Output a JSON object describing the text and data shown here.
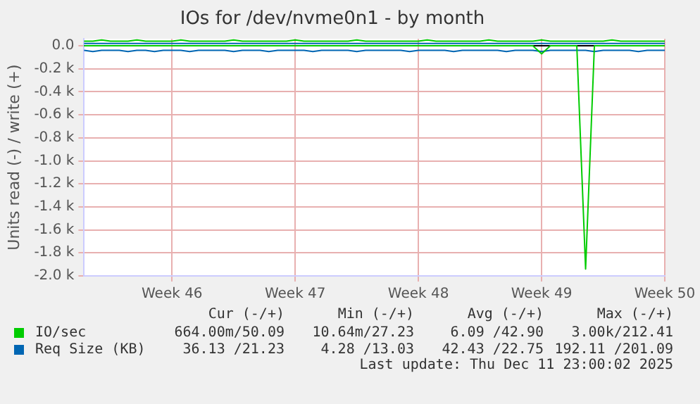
{
  "chart_data": {
    "type": "line",
    "title": "IOs for /dev/nvme0n1 - by month",
    "ylabel": "Units read (-) / write (+)",
    "categories": [
      null,
      null,
      null,
      null,
      null,
      null,
      null,
      null,
      null,
      null,
      "Week 46",
      null,
      null,
      null,
      null,
      null,
      null,
      null,
      null,
      null,
      null,
      null,
      null,
      null,
      "Week 47",
      null,
      null,
      null,
      null,
      null,
      null,
      null,
      null,
      null,
      null,
      null,
      null,
      null,
      "Week 48",
      null,
      null,
      null,
      null,
      null,
      null,
      null,
      null,
      null,
      null,
      null,
      null,
      null,
      "Week 49",
      null,
      null,
      null,
      null,
      null,
      null,
      null,
      null,
      null,
      null,
      null,
      null,
      null,
      "Week 50"
    ],
    "ylim": [
      -2000,
      60
    ],
    "yticks": [
      {
        "value": -2000,
        "label": "-2.0 k"
      },
      {
        "value": -1800,
        "label": "-1.8 k"
      },
      {
        "value": -1600,
        "label": "-1.6 k"
      },
      {
        "value": -1400,
        "label": "-1.4 k"
      },
      {
        "value": -1200,
        "label": "-1.2 k"
      },
      {
        "value": -1000,
        "label": "-1.0 k"
      },
      {
        "value": -800,
        "label": "-0.8 k"
      },
      {
        "value": -600,
        "label": "-0.6 k"
      },
      {
        "value": -400,
        "label": "-0.4 k"
      },
      {
        "value": -200,
        "label": "-0.2 k"
      },
      {
        "value": 0,
        "label": "0.0"
      }
    ],
    "grid": true,
    "legend": "bottom",
    "marker": "none",
    "line_style": "solid",
    "series": [
      {
        "color": "#00cc00",
        "values": [
          0,
          0,
          0,
          0,
          0,
          0,
          0,
          0,
          0,
          0,
          0,
          0,
          0,
          0,
          0,
          0,
          0,
          0,
          0,
          0,
          0,
          0,
          0,
          0,
          0,
          0,
          0,
          0,
          0,
          0,
          0,
          0,
          0,
          0,
          0,
          0,
          0,
          0,
          0,
          0,
          0,
          0,
          0,
          0,
          0,
          0,
          0,
          0,
          0,
          0,
          0,
          0,
          -70,
          0,
          0,
          0,
          0,
          -1940,
          0,
          0,
          0,
          0,
          0,
          0,
          0,
          0,
          0
        ]
      },
      {
        "name": "IO/sec",
        "color": "#00cc00",
        "values": [
          40,
          40,
          50,
          40,
          40,
          40,
          50,
          40,
          40,
          40,
          40,
          50,
          40,
          40,
          40,
          40,
          40,
          50,
          40,
          40,
          40,
          40,
          40,
          40,
          50,
          40,
          40,
          40,
          40,
          40,
          40,
          50,
          40,
          40,
          40,
          40,
          40,
          40,
          40,
          50,
          40,
          40,
          40,
          40,
          40,
          40,
          50,
          40,
          40,
          40,
          40,
          40,
          50,
          40,
          40,
          40,
          40,
          40,
          40,
          40,
          50,
          40,
          40,
          40,
          40,
          40,
          40
        ]
      },
      {
        "color": "#0066b3",
        "values": [
          -40,
          -50,
          -40,
          -40,
          -40,
          -50,
          -40,
          -40,
          -50,
          -40,
          -40,
          -40,
          -50,
          -40,
          -40,
          -40,
          -40,
          -50,
          -40,
          -40,
          -40,
          -50,
          -40,
          -40,
          -40,
          -40,
          -50,
          -40,
          -40,
          -40,
          -40,
          -50,
          -40,
          -40,
          -40,
          -40,
          -40,
          -50,
          -40,
          -40,
          -40,
          -40,
          -50,
          -40,
          -40,
          -40,
          -40,
          -40,
          -50,
          -40,
          -40,
          -40,
          -50,
          -40,
          -40,
          -40,
          -40,
          -40,
          -50,
          -40,
          -40,
          -40,
          -40,
          -50,
          -40,
          -40,
          -40
        ]
      },
      {
        "name": "Req Size (KB)",
        "color": "#0066b3",
        "values": [
          20,
          20,
          20,
          20,
          20,
          20,
          20,
          20,
          20,
          20,
          20,
          20,
          20,
          20,
          20,
          20,
          20,
          20,
          20,
          20,
          20,
          20,
          20,
          20,
          20,
          20,
          20,
          20,
          20,
          20,
          20,
          20,
          20,
          20,
          20,
          20,
          20,
          20,
          20,
          20,
          20,
          20,
          20,
          20,
          20,
          20,
          20,
          20,
          20,
          20,
          20,
          20,
          20,
          20,
          20,
          20,
          20,
          20,
          20,
          20,
          20,
          20,
          20,
          20,
          20,
          20,
          20
        ]
      }
    ],
    "annotations": [
      "Cur (-/+)",
      "Min (-/+)",
      "Avg (-/+)",
      "Max (-/+)",
      "664.00m/50.09",
      "10.64m/27.23",
      "6.09 /42.90",
      "3.00k/212.41",
      "36.13 /21.23",
      "4.28 /13.03",
      "42.43 /22.75",
      "192.11 /201.09",
      "Last update: Thu Dec 11 23:00:02 2025"
    ]
  }
}
